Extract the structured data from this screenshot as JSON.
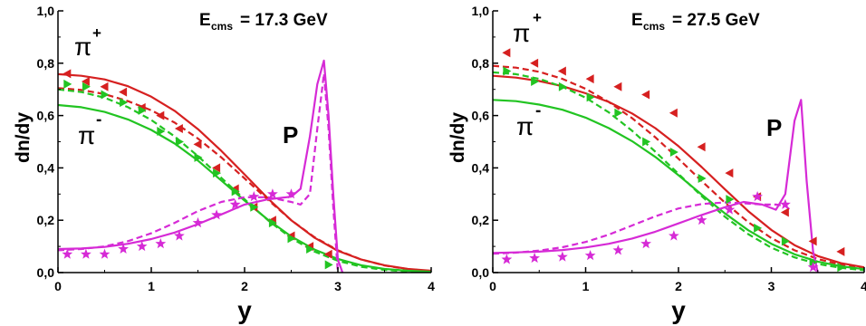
{
  "figure": {
    "colors": {
      "red": "#d62020",
      "green": "#22c422",
      "magenta": "#d62ad6",
      "axis": "#000000"
    }
  },
  "chart_data": [
    {
      "type": "line",
      "title_parts": {
        "e": "E",
        "sub": "cms",
        "rest": "= 17.3 GeV"
      },
      "xlabel": "y",
      "ylabel": "dn/dy",
      "xlim": [
        0,
        4
      ],
      "ylim": [
        0,
        1.0
      ],
      "xticks": [
        "0",
        "1",
        "2",
        "3",
        "4"
      ],
      "yticks": [
        "0,0",
        "0,2",
        "0,4",
        "0,6",
        "0,8",
        "1,0"
      ],
      "grid": false,
      "annotations": {
        "pi_plus": "π",
        "pi_plus_sup": "+",
        "pi_minus": "π",
        "pi_minus_sup": "-",
        "proton": "P"
      },
      "series": [
        {
          "color": "red",
          "dash": false,
          "x": [
            0,
            0.25,
            0.5,
            0.75,
            1,
            1.25,
            1.5,
            1.75,
            2,
            2.25,
            2.5,
            2.75,
            3,
            3.25,
            3.5,
            3.75,
            4
          ],
          "y": [
            0.758,
            0.752,
            0.738,
            0.712,
            0.672,
            0.618,
            0.548,
            0.465,
            0.375,
            0.283,
            0.2,
            0.133,
            0.083,
            0.05,
            0.028,
            0.014,
            0.007
          ]
        },
        {
          "color": "red",
          "dash": true,
          "x": [
            0,
            0.25,
            0.5,
            0.75,
            1,
            1.25,
            1.5,
            1.75,
            2,
            2.25,
            2.5,
            2.75,
            3,
            3.25,
            3.5,
            3.75,
            4
          ],
          "y": [
            0.705,
            0.698,
            0.682,
            0.655,
            0.62,
            0.573,
            0.512,
            0.44,
            0.36,
            0.278,
            0.2,
            0.135,
            0.085,
            0.05,
            0.027,
            0.013,
            0.006
          ]
        },
        {
          "color": "green",
          "dash": false,
          "x": [
            0,
            0.25,
            0.5,
            0.75,
            1,
            1.25,
            1.5,
            1.75,
            2,
            2.25,
            2.5,
            2.75,
            3,
            3.25,
            3.5,
            3.75,
            4
          ],
          "y": [
            0.64,
            0.632,
            0.614,
            0.585,
            0.545,
            0.493,
            0.428,
            0.352,
            0.275,
            0.202,
            0.138,
            0.088,
            0.052,
            0.028,
            0.014,
            0.007,
            0.003
          ]
        },
        {
          "color": "green",
          "dash": true,
          "x": [
            0,
            0.25,
            0.5,
            0.75,
            1,
            1.25,
            1.5,
            1.75,
            2,
            2.25,
            2.5,
            2.75,
            3,
            3.25,
            3.5,
            3.75,
            4
          ],
          "y": [
            0.7,
            0.69,
            0.668,
            0.632,
            0.583,
            0.52,
            0.445,
            0.362,
            0.28,
            0.2,
            0.132,
            0.08,
            0.045,
            0.022,
            0.01,
            0.004,
            0.002
          ]
        },
        {
          "color": "magenta",
          "dash": false,
          "x": [
            0,
            0.25,
            0.5,
            0.75,
            1,
            1.25,
            1.5,
            1.75,
            2,
            2.25,
            2.5,
            2.6,
            2.7,
            2.78,
            2.85,
            2.9,
            2.95,
            3.0,
            3.05
          ],
          "y": [
            0.09,
            0.092,
            0.098,
            0.11,
            0.128,
            0.153,
            0.185,
            0.222,
            0.26,
            0.28,
            0.29,
            0.32,
            0.52,
            0.72,
            0.81,
            0.6,
            0.3,
            0.05,
            0.0
          ]
        },
        {
          "color": "magenta",
          "dash": true,
          "x": [
            0,
            0.25,
            0.5,
            0.75,
            1,
            1.25,
            1.5,
            1.75,
            2,
            2.25,
            2.5,
            2.6,
            2.7,
            2.78,
            2.85,
            2.9,
            2.95,
            3.0
          ],
          "y": [
            0.085,
            0.09,
            0.1,
            0.12,
            0.15,
            0.19,
            0.235,
            0.27,
            0.288,
            0.288,
            0.27,
            0.26,
            0.3,
            0.55,
            0.76,
            0.55,
            0.25,
            0.0
          ]
        }
      ],
      "points": [
        {
          "name": "pi+ data",
          "marker": "triangle-left",
          "color": "red",
          "x": [
            0.1,
            0.3,
            0.5,
            0.7,
            0.9,
            1.1,
            1.3,
            1.5,
            1.7,
            1.9,
            2.1,
            2.3,
            2.5,
            2.7,
            2.9
          ],
          "y": [
            0.76,
            0.73,
            0.71,
            0.69,
            0.63,
            0.6,
            0.55,
            0.49,
            0.4,
            0.32,
            0.25,
            0.2,
            0.14,
            0.1,
            0.07
          ]
        },
        {
          "name": "pi- data",
          "marker": "triangle-right",
          "color": "green",
          "x": [
            0.1,
            0.3,
            0.5,
            0.7,
            0.9,
            1.1,
            1.3,
            1.5,
            1.7,
            1.9,
            2.1,
            2.3,
            2.5,
            2.7,
            2.9
          ],
          "y": [
            0.72,
            0.71,
            0.68,
            0.65,
            0.62,
            0.54,
            0.5,
            0.44,
            0.38,
            0.31,
            0.25,
            0.19,
            0.13,
            0.09,
            0.03
          ]
        },
        {
          "name": "proton data",
          "marker": "star",
          "color": "magenta",
          "x": [
            0.1,
            0.3,
            0.5,
            0.7,
            0.9,
            1.1,
            1.3,
            1.5,
            1.7,
            1.9,
            2.1,
            2.3,
            2.5
          ],
          "y": [
            0.07,
            0.07,
            0.07,
            0.09,
            0.1,
            0.11,
            0.14,
            0.19,
            0.22,
            0.26,
            0.29,
            0.3,
            0.3
          ]
        }
      ]
    },
    {
      "type": "line",
      "title_parts": {
        "e": "E",
        "sub": "cms",
        "rest": "= 27.5 GeV"
      },
      "xlabel": "y",
      "ylabel": "dn/dy",
      "xlim": [
        0,
        4
      ],
      "ylim": [
        0,
        1.0
      ],
      "xticks": [
        "0",
        "1",
        "2",
        "3",
        "4"
      ],
      "yticks": [
        "0,0",
        "0,2",
        "0,4",
        "0,6",
        "0,8",
        "1,0"
      ],
      "grid": false,
      "annotations": {
        "pi_plus": "π",
        "pi_plus_sup": "+",
        "pi_minus": "π",
        "pi_minus_sup": "-",
        "proton": "P"
      },
      "series": [
        {
          "color": "red",
          "dash": false,
          "x": [
            0,
            0.25,
            0.5,
            0.75,
            1,
            1.25,
            1.5,
            1.75,
            2,
            2.25,
            2.5,
            2.75,
            3,
            3.25,
            3.5,
            3.75,
            4
          ],
          "y": [
            0.752,
            0.745,
            0.732,
            0.712,
            0.685,
            0.652,
            0.608,
            0.552,
            0.483,
            0.403,
            0.318,
            0.235,
            0.163,
            0.105,
            0.063,
            0.036,
            0.02
          ]
        },
        {
          "color": "red",
          "dash": true,
          "x": [
            0,
            0.25,
            0.5,
            0.75,
            1,
            1.25,
            1.5,
            1.75,
            2,
            2.25,
            2.5,
            2.75,
            3,
            3.25,
            3.5,
            3.75,
            4
          ],
          "y": [
            0.79,
            0.783,
            0.767,
            0.74,
            0.702,
            0.652,
            0.59,
            0.517,
            0.435,
            0.35,
            0.267,
            0.193,
            0.132,
            0.085,
            0.052,
            0.03,
            0.016
          ]
        },
        {
          "color": "green",
          "dash": false,
          "x": [
            0,
            0.25,
            0.5,
            0.75,
            1,
            1.25,
            1.5,
            1.75,
            2,
            2.25,
            2.5,
            2.75,
            3,
            3.25,
            3.5,
            3.75,
            4
          ],
          "y": [
            0.66,
            0.655,
            0.642,
            0.622,
            0.592,
            0.552,
            0.502,
            0.442,
            0.372,
            0.298,
            0.226,
            0.162,
            0.11,
            0.07,
            0.042,
            0.024,
            0.013
          ]
        },
        {
          "color": "green",
          "dash": true,
          "x": [
            0,
            0.25,
            0.5,
            0.75,
            1,
            1.25,
            1.5,
            1.75,
            2,
            2.25,
            2.5,
            2.75,
            3,
            3.25,
            3.5,
            3.75,
            4
          ],
          "y": [
            0.765,
            0.758,
            0.74,
            0.71,
            0.668,
            0.612,
            0.542,
            0.462,
            0.377,
            0.292,
            0.213,
            0.147,
            0.095,
            0.058,
            0.033,
            0.018,
            0.009
          ]
        },
        {
          "color": "magenta",
          "dash": false,
          "x": [
            0,
            0.25,
            0.5,
            0.75,
            1,
            1.25,
            1.5,
            1.75,
            2,
            2.25,
            2.5,
            2.7,
            2.9,
            3.05,
            3.15,
            3.25,
            3.32,
            3.38,
            3.45,
            3.5
          ],
          "y": [
            0.075,
            0.077,
            0.08,
            0.086,
            0.096,
            0.11,
            0.13,
            0.156,
            0.188,
            0.22,
            0.25,
            0.27,
            0.26,
            0.24,
            0.3,
            0.58,
            0.66,
            0.35,
            0.08,
            0.0
          ]
        },
        {
          "color": "magenta",
          "dash": true,
          "x": [
            0,
            0.25,
            0.5,
            0.75,
            1,
            1.25,
            1.5,
            1.75,
            2,
            2.25,
            2.5,
            2.7,
            2.9,
            3.05,
            3.15,
            3.2
          ],
          "y": [
            0.072,
            0.076,
            0.084,
            0.097,
            0.117,
            0.145,
            0.18,
            0.215,
            0.245,
            0.262,
            0.268,
            0.265,
            0.26,
            0.26,
            0.255,
            0.24
          ]
        }
      ],
      "points": [
        {
          "name": "pi+ data",
          "marker": "triangle-left",
          "color": "red",
          "x": [
            0.15,
            0.45,
            0.75,
            1.05,
            1.35,
            1.65,
            1.95,
            2.25,
            2.55,
            2.85,
            3.15,
            3.45,
            3.75
          ],
          "y": [
            0.84,
            0.8,
            0.77,
            0.74,
            0.71,
            0.68,
            0.61,
            0.48,
            0.38,
            0.29,
            0.23,
            0.12,
            0.08
          ]
        },
        {
          "name": "pi- data",
          "marker": "triangle-right",
          "color": "green",
          "x": [
            0.15,
            0.45,
            0.75,
            1.05,
            1.35,
            1.65,
            1.95,
            2.25,
            2.55,
            2.85,
            3.15,
            3.45,
            3.75
          ],
          "y": [
            0.77,
            0.73,
            0.71,
            0.67,
            0.61,
            0.5,
            0.46,
            0.36,
            0.28,
            0.17,
            0.12,
            0.04,
            0.02
          ]
        },
        {
          "name": "proton data",
          "marker": "star",
          "color": "magenta",
          "x": [
            0.15,
            0.45,
            0.75,
            1.05,
            1.35,
            1.65,
            1.95,
            2.25,
            2.55,
            2.85,
            3.15,
            3.45
          ],
          "y": [
            0.05,
            0.055,
            0.06,
            0.065,
            0.085,
            0.11,
            0.14,
            0.2,
            0.24,
            0.29,
            0.26,
            0.02
          ]
        }
      ]
    }
  ]
}
